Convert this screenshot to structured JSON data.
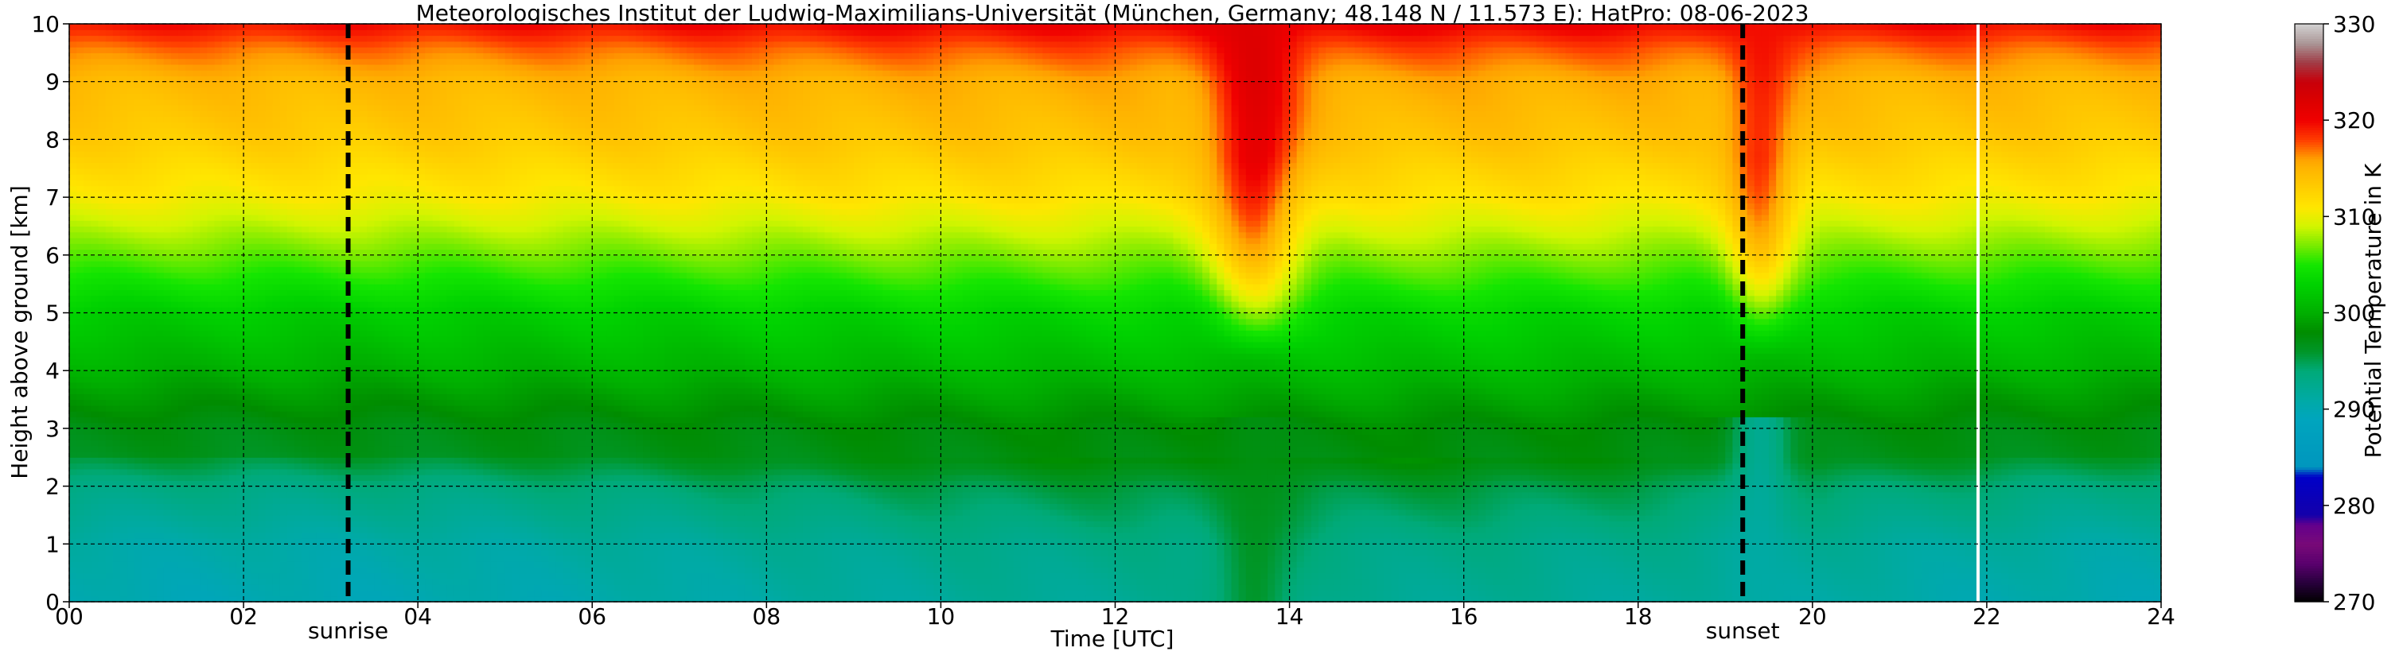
{
  "chart_data": {
    "type": "heatmap",
    "title": "Meteorologisches Institut der Ludwig-Maximilians-Universität (München, Germany; 48.148 N / 11.573 E):    HatPro: 08-06-2023",
    "xlabel": "Time [UTC]",
    "ylabel": "Height above ground [km]",
    "xlim": [
      0,
      24
    ],
    "ylim": [
      0,
      10
    ],
    "x_ticks": [
      "00",
      "02",
      "04",
      "06",
      "08",
      "10",
      "12",
      "14",
      "16",
      "18",
      "20",
      "22",
      "24"
    ],
    "y_ticks": [
      "0",
      "1",
      "2",
      "3",
      "4",
      "5",
      "6",
      "7",
      "8",
      "9",
      "10"
    ],
    "grid": true,
    "colorbar": {
      "label": "Potential Temperature in K",
      "range": [
        270,
        330
      ],
      "ticks": [
        "270",
        "280",
        "290",
        "300",
        "310",
        "320",
        "330"
      ]
    },
    "markers": [
      {
        "label": "sunrise",
        "time": 3.2
      },
      {
        "label": "sunset",
        "time": 19.2
      }
    ],
    "gap_time": 21.9,
    "profile": {
      "heights": [
        0,
        1,
        2,
        2.5,
        3,
        4,
        5,
        6,
        7,
        8,
        9,
        9.6,
        10
      ],
      "theta": [
        291,
        292,
        294.5,
        297,
        297.5,
        300.5,
        303,
        307,
        311,
        313.5,
        315,
        317.5,
        320
      ]
    },
    "convective_events": [
      {
        "center": 13.6,
        "width": 0.6,
        "theta_aloft": 321,
        "theta_surface": 297
      },
      {
        "center": 19.4,
        "width": 0.45,
        "theta_aloft": 319,
        "theta_surface": 291
      }
    ]
  }
}
